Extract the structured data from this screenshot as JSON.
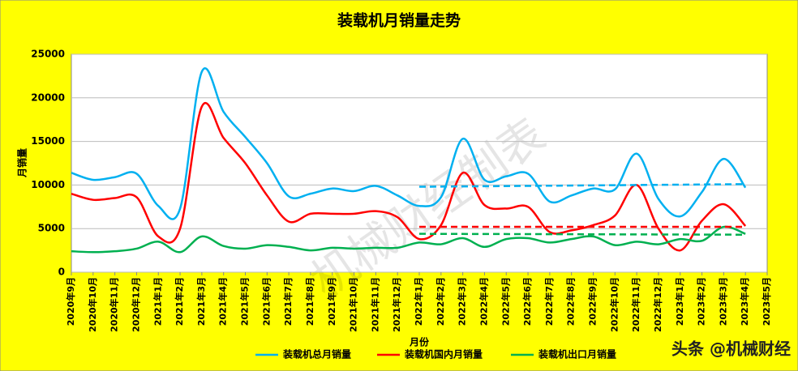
{
  "chart_data": {
    "type": "line",
    "title": "装载机月销量走势",
    "x_label": "月份",
    "y_label": "月销量",
    "categories": [
      "2020年9月",
      "2020年10月",
      "2020年11月",
      "2020年12月",
      "2021年1月",
      "2021年2月",
      "2021年3月",
      "2021年4月",
      "2021年5月",
      "2021年6月",
      "2021年7月",
      "2021年8月",
      "2021年9月",
      "2021年10月",
      "2021年11月",
      "2021年12月",
      "2022年1月",
      "2022年2月",
      "2022年3月",
      "2022年4月",
      "2022年5月",
      "2022年6月",
      "2022年7月",
      "2022年8月",
      "2022年9月",
      "2022年10月",
      "2022年11月",
      "2022年12月",
      "2023年1月",
      "2023年2月",
      "2023年3月",
      "2023年4月",
      "2023年5月"
    ],
    "series": [
      {
        "name": "装载机总月销量",
        "color": "#00b0f0",
        "values": [
          11400,
          10600,
          10900,
          11300,
          7600,
          7300,
          23000,
          18400,
          15500,
          12500,
          8700,
          9000,
          9600,
          9300,
          9900,
          8800,
          7600,
          8600,
          15300,
          10600,
          11000,
          11300,
          8100,
          8800,
          9600,
          9500,
          13600,
          8400,
          6400,
          9200,
          13000,
          9700,
          null
        ]
      },
      {
        "name": "装载机国内月销量",
        "color": "#ff0000",
        "values": [
          9000,
          8300,
          8500,
          8600,
          4100,
          5000,
          19000,
          15400,
          12500,
          8800,
          5800,
          6700,
          6700,
          6700,
          7000,
          6300,
          3800,
          5400,
          11400,
          7700,
          7300,
          7500,
          4600,
          4800,
          5400,
          6500,
          10000,
          5000,
          2500,
          5900,
          7800,
          5300,
          null
        ]
      },
      {
        "name": "装载机出口月销量",
        "color": "#00b050",
        "values": [
          2400,
          2300,
          2400,
          2700,
          3500,
          2300,
          4100,
          3000,
          2700,
          3100,
          2900,
          2500,
          2800,
          2700,
          2800,
          2800,
          3400,
          3200,
          3900,
          2900,
          3800,
          3900,
          3400,
          3800,
          4100,
          3100,
          3500,
          3200,
          3800,
          3600,
          5200,
          4400,
          null
        ]
      }
    ],
    "trend_lines": [
      {
        "color": "#00b0f0",
        "from": "2022年1月",
        "to": "2023年4月",
        "values": [
          9800,
          10100
        ]
      },
      {
        "color": "#ff0000",
        "from": "2022年1月",
        "to": "2023年4月",
        "values": [
          5200,
          5200
        ]
      },
      {
        "color": "#00b050",
        "from": "2022年1月",
        "to": "2023年4月",
        "values": [
          4400,
          4300
        ]
      }
    ],
    "ylim": [
      0,
      25000
    ],
    "yticks": [
      0,
      5000,
      10000,
      15000,
      20000,
      25000
    ],
    "grid": true,
    "legend": "bottom",
    "watermark": "机械财经制表",
    "credit": "头条 @机械财经"
  }
}
